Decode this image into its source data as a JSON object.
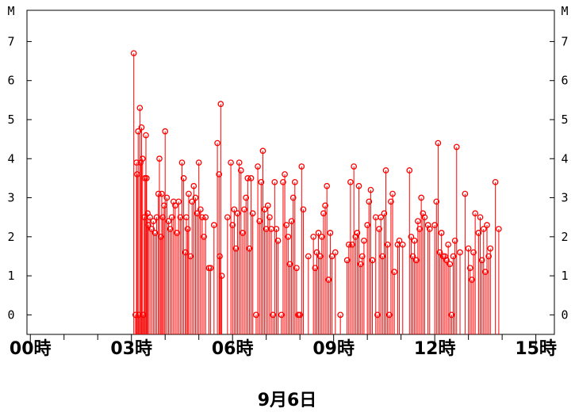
{
  "chart_data": {
    "type": "line",
    "style": "stem",
    "date_label": "9月6日",
    "y_unit_label": "M",
    "ylim": [
      -0.5,
      7.8
    ],
    "y_ticks": [
      0,
      1,
      2,
      3,
      4,
      5,
      6,
      7
    ],
    "x_range_hours": [
      -0.1,
      15.55
    ],
    "x_tick_labels": [
      {
        "hour": 0,
        "label": "00時"
      },
      {
        "hour": 3,
        "label": "03時"
      },
      {
        "hour": 6,
        "label": "06時"
      },
      {
        "hour": 9,
        "label": "09時"
      },
      {
        "hour": 12,
        "label": "12時"
      },
      {
        "hour": 15,
        "label": "15時"
      }
    ],
    "grid": false,
    "series_color": "#ff0000",
    "series": [
      {
        "name": "",
        "points": [
          [
            3.07,
            6.7
          ],
          [
            3.12,
            0.0
          ],
          [
            3.15,
            3.9
          ],
          [
            3.17,
            3.6
          ],
          [
            3.2,
            4.7
          ],
          [
            3.22,
            0.0
          ],
          [
            3.25,
            5.3
          ],
          [
            3.27,
            3.9
          ],
          [
            3.3,
            4.8
          ],
          [
            3.33,
            4.0
          ],
          [
            3.35,
            0.0
          ],
          [
            3.38,
            2.5
          ],
          [
            3.4,
            3.5
          ],
          [
            3.43,
            4.6
          ],
          [
            3.45,
            3.5
          ],
          [
            3.48,
            2.6
          ],
          [
            3.5,
            2.3
          ],
          [
            3.55,
            2.5
          ],
          [
            3.6,
            2.2
          ],
          [
            3.65,
            2.4
          ],
          [
            3.7,
            2.1
          ],
          [
            3.75,
            2.5
          ],
          [
            3.8,
            3.1
          ],
          [
            3.83,
            4.0
          ],
          [
            3.87,
            2.0
          ],
          [
            3.9,
            3.1
          ],
          [
            3.93,
            2.5
          ],
          [
            3.97,
            2.8
          ],
          [
            4.0,
            4.7
          ],
          [
            4.05,
            3.0
          ],
          [
            4.1,
            2.4
          ],
          [
            4.15,
            2.2
          ],
          [
            4.2,
            2.5
          ],
          [
            4.25,
            2.9
          ],
          [
            4.3,
            2.8
          ],
          [
            4.35,
            2.1
          ],
          [
            4.4,
            2.9
          ],
          [
            4.45,
            2.5
          ],
          [
            4.5,
            3.9
          ],
          [
            4.55,
            3.5
          ],
          [
            4.6,
            1.6
          ],
          [
            4.63,
            2.5
          ],
          [
            4.67,
            2.2
          ],
          [
            4.7,
            3.1
          ],
          [
            4.75,
            1.5
          ],
          [
            4.8,
            2.9
          ],
          [
            4.85,
            3.3
          ],
          [
            4.9,
            3.0
          ],
          [
            4.95,
            2.6
          ],
          [
            5.0,
            3.9
          ],
          [
            5.05,
            2.7
          ],
          [
            5.1,
            2.5
          ],
          [
            5.15,
            2.0
          ],
          [
            5.2,
            2.5
          ],
          [
            5.3,
            1.2
          ],
          [
            5.35,
            1.2
          ],
          [
            5.45,
            2.3
          ],
          [
            5.55,
            4.4
          ],
          [
            5.6,
            3.6
          ],
          [
            5.62,
            1.5
          ],
          [
            5.65,
            5.4
          ],
          [
            5.68,
            1.0
          ],
          [
            5.85,
            2.5
          ],
          [
            5.95,
            3.9
          ],
          [
            6.0,
            2.3
          ],
          [
            6.05,
            2.7
          ],
          [
            6.1,
            1.7
          ],
          [
            6.15,
            2.6
          ],
          [
            6.2,
            3.9
          ],
          [
            6.25,
            3.7
          ],
          [
            6.3,
            2.1
          ],
          [
            6.35,
            2.7
          ],
          [
            6.4,
            3.0
          ],
          [
            6.45,
            3.5
          ],
          [
            6.5,
            1.7
          ],
          [
            6.55,
            3.5
          ],
          [
            6.6,
            2.6
          ],
          [
            6.7,
            0.0
          ],
          [
            6.75,
            3.8
          ],
          [
            6.8,
            2.4
          ],
          [
            6.85,
            3.4
          ],
          [
            6.9,
            4.2
          ],
          [
            6.95,
            2.7
          ],
          [
            7.0,
            2.2
          ],
          [
            7.05,
            2.8
          ],
          [
            7.1,
            2.5
          ],
          [
            7.15,
            2.2
          ],
          [
            7.2,
            0.0
          ],
          [
            7.25,
            3.4
          ],
          [
            7.3,
            2.2
          ],
          [
            7.35,
            1.9
          ],
          [
            7.45,
            0.0
          ],
          [
            7.5,
            3.4
          ],
          [
            7.55,
            3.6
          ],
          [
            7.6,
            2.3
          ],
          [
            7.65,
            2.0
          ],
          [
            7.7,
            1.3
          ],
          [
            7.75,
            2.4
          ],
          [
            7.8,
            3.0
          ],
          [
            7.85,
            3.4
          ],
          [
            7.9,
            1.2
          ],
          [
            7.95,
            0.0
          ],
          [
            8.0,
            0.0
          ],
          [
            8.05,
            3.8
          ],
          [
            8.1,
            2.7
          ],
          [
            8.25,
            1.5
          ],
          [
            8.4,
            2.0
          ],
          [
            8.45,
            1.2
          ],
          [
            8.5,
            1.6
          ],
          [
            8.55,
            2.1
          ],
          [
            8.6,
            1.5
          ],
          [
            8.65,
            2.0
          ],
          [
            8.7,
            2.6
          ],
          [
            8.75,
            2.8
          ],
          [
            8.8,
            3.3
          ],
          [
            8.85,
            0.9
          ],
          [
            8.9,
            2.1
          ],
          [
            8.95,
            1.5
          ],
          [
            9.05,
            1.6
          ],
          [
            9.2,
            0.0
          ],
          [
            9.4,
            1.4
          ],
          [
            9.45,
            1.8
          ],
          [
            9.5,
            3.4
          ],
          [
            9.55,
            1.8
          ],
          [
            9.6,
            3.8
          ],
          [
            9.65,
            2.0
          ],
          [
            9.7,
            2.1
          ],
          [
            9.75,
            3.3
          ],
          [
            9.8,
            1.3
          ],
          [
            9.85,
            1.5
          ],
          [
            9.9,
            1.9
          ],
          [
            10.0,
            2.3
          ],
          [
            10.05,
            2.9
          ],
          [
            10.1,
            3.2
          ],
          [
            10.15,
            1.4
          ],
          [
            10.25,
            2.5
          ],
          [
            10.3,
            0.0
          ],
          [
            10.35,
            2.2
          ],
          [
            10.4,
            2.5
          ],
          [
            10.45,
            1.5
          ],
          [
            10.5,
            2.6
          ],
          [
            10.55,
            3.7
          ],
          [
            10.6,
            1.8
          ],
          [
            10.65,
            0.0
          ],
          [
            10.7,
            2.9
          ],
          [
            10.75,
            3.1
          ],
          [
            10.8,
            1.1
          ],
          [
            10.9,
            1.8
          ],
          [
            10.95,
            1.9
          ],
          [
            11.05,
            1.8
          ],
          [
            11.25,
            3.7
          ],
          [
            11.3,
            2.0
          ],
          [
            11.35,
            1.5
          ],
          [
            11.4,
            1.9
          ],
          [
            11.45,
            1.4
          ],
          [
            11.5,
            2.4
          ],
          [
            11.55,
            2.2
          ],
          [
            11.6,
            3.0
          ],
          [
            11.65,
            2.6
          ],
          [
            11.7,
            2.5
          ],
          [
            11.8,
            2.3
          ],
          [
            11.85,
            2.2
          ],
          [
            12.0,
            2.3
          ],
          [
            12.05,
            2.9
          ],
          [
            12.1,
            4.4
          ],
          [
            12.15,
            1.6
          ],
          [
            12.2,
            2.1
          ],
          [
            12.25,
            1.5
          ],
          [
            12.3,
            1.5
          ],
          [
            12.35,
            1.4
          ],
          [
            12.4,
            1.8
          ],
          [
            12.45,
            1.3
          ],
          [
            12.5,
            0.0
          ],
          [
            12.55,
            1.5
          ],
          [
            12.6,
            1.9
          ],
          [
            12.65,
            4.3
          ],
          [
            12.75,
            1.6
          ],
          [
            12.9,
            3.1
          ],
          [
            13.0,
            1.7
          ],
          [
            13.05,
            1.2
          ],
          [
            13.1,
            0.9
          ],
          [
            13.15,
            1.6
          ],
          [
            13.2,
            2.6
          ],
          [
            13.3,
            2.1
          ],
          [
            13.35,
            2.5
          ],
          [
            13.4,
            1.4
          ],
          [
            13.45,
            2.2
          ],
          [
            13.5,
            1.1
          ],
          [
            13.55,
            2.3
          ],
          [
            13.6,
            1.5
          ],
          [
            13.65,
            1.7
          ],
          [
            13.8,
            3.4
          ],
          [
            13.9,
            2.2
          ]
        ]
      }
    ]
  }
}
